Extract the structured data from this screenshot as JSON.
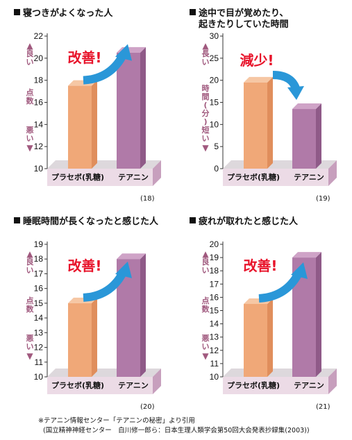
{
  "chart_data": [
    {
      "type": "bar",
      "title": "寝つきがよくなった人",
      "categories": [
        "プラセボ(乳糖)",
        "テアニン"
      ],
      "values": [
        17.5,
        20.5
      ],
      "ylim": [
        10,
        22
      ],
      "yticks": [
        10,
        12,
        14,
        16,
        18,
        20,
        22
      ],
      "ylabel_top": "良い",
      "ylabel_mid": "点数",
      "ylabel_bottom": "悪い",
      "callout": "改善!",
      "note": "(18)",
      "colors": [
        "#f0a878",
        "#b07aa8"
      ]
    },
    {
      "type": "bar",
      "title": "途中で目が覚めたり、",
      "title_line2": "起きたりしていた時間",
      "categories": [
        "プラセボ(乳糖)",
        "テアニン"
      ],
      "values": [
        19.5,
        13.5
      ],
      "ylim": [
        0,
        30
      ],
      "yticks": [
        0,
        5,
        10,
        15,
        20,
        25,
        30
      ],
      "ylabel_top": "長い",
      "ylabel_mid": "時間(分)",
      "ylabel_bottom": "短い",
      "callout": "減少!",
      "note": "(19)",
      "colors": [
        "#f0a878",
        "#b07aa8"
      ]
    },
    {
      "type": "bar",
      "title": "睡眠時間が長くなったと感じた人",
      "categories": [
        "プラセボ(乳糖)",
        "テアニン"
      ],
      "values": [
        15.0,
        18.0
      ],
      "ylim": [
        10,
        19
      ],
      "yticks": [
        10,
        11,
        12,
        13,
        14,
        15,
        16,
        17,
        18,
        19
      ],
      "ylabel_top": "良い",
      "ylabel_mid": "点数",
      "ylabel_bottom": "悪い",
      "callout": "改善!",
      "note": "(20)",
      "colors": [
        "#f0a878",
        "#b07aa8"
      ]
    },
    {
      "type": "bar",
      "title": "疲れが取れたと感じた人",
      "categories": [
        "プラセボ(乳糖)",
        "テアニン"
      ],
      "values": [
        15.5,
        19.0
      ],
      "ylim": [
        10,
        20
      ],
      "yticks": [
        10,
        11,
        12,
        13,
        14,
        15,
        16,
        17,
        18,
        19,
        20
      ],
      "ylabel_top": "良い",
      "ylabel_mid": "点数",
      "ylabel_bottom": "悪い",
      "callout": "改善!",
      "note": "(21)",
      "colors": [
        "#f0a878",
        "#b07aa8"
      ]
    }
  ],
  "footnote": {
    "line1": "※テアニン情報センター「テアニンの秘密」より引用",
    "line2": "(国立精神神経センター　白川修一郎ら：日本生理人類学会第50回大会発表抄録集(2003))"
  }
}
